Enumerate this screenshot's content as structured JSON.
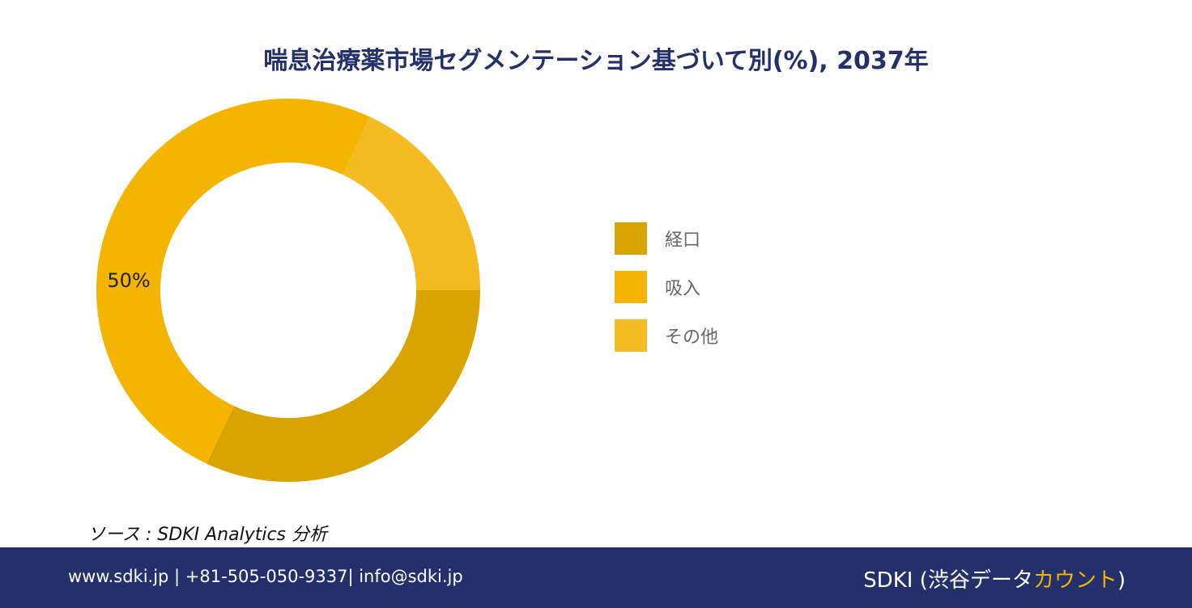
{
  "chart_data": {
    "type": "pie",
    "title": "喘息治療薬市場セグメンテーション基づいて別(%), 2037年",
    "categories": [
      "経口",
      "吸入",
      "その他"
    ],
    "values": [
      32,
      50,
      18
    ],
    "colors": [
      "#daa400",
      "#f5b400",
      "#f4bc22"
    ],
    "data_labels": [
      "",
      "50%",
      ""
    ],
    "legend_position": "right",
    "donut": true
  },
  "source": "ソース : SDKI Analytics 分析",
  "footer": {
    "contact": "www.sdki.jp | +81-505-050-9337| info@sdki.jp",
    "brand_main": "SDKI (渋谷データ",
    "brand_accent": "カウント",
    "brand_close": ")"
  }
}
